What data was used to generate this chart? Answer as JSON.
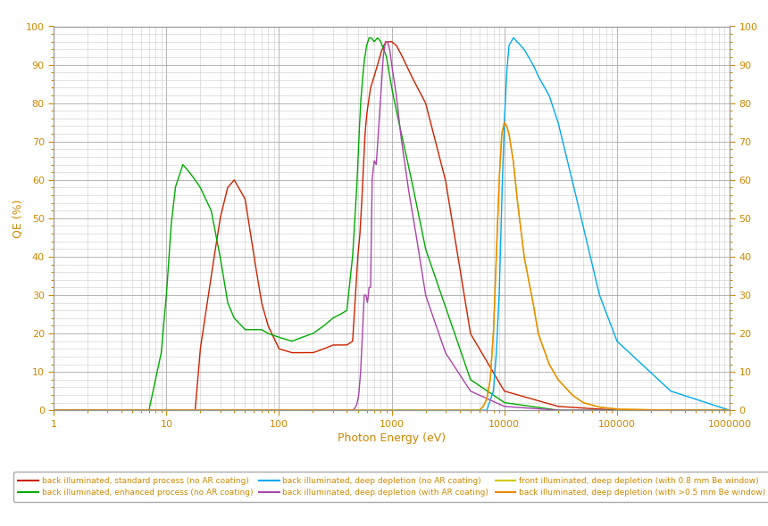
{
  "xlabel": "Photon Energy (eV)",
  "ylabel": "QE (%)",
  "xlim_low": 1,
  "xlim_high": 1000000,
  "ylim_low": 0,
  "ylim_high": 100,
  "bg_color": "#ffffff",
  "plot_bg_color": "#ffffff",
  "grid_major_color": "#aaaaaa",
  "grid_minor_color": "#cccccc",
  "tick_color": "#cc8800",
  "legend_entries": [
    "back illuminated, standard process (no AR coating)",
    "back illuminated, enhanced process (no AR coating)",
    "back illuminated, deep depletion (no AR coating)",
    "back illuminated, deep depletion (with AR coating)",
    "front illuminated, deep depletion (with 0.8 mm Be window)",
    "back illuminated, deep depletion (with >0.5 mm Be window)"
  ],
  "line_colors": [
    "#cc2200",
    "#00aa00",
    "#00aaee",
    "#aa44aa",
    "#cccc00",
    "#ee8800"
  ],
  "red_x": [
    1,
    3,
    5,
    7,
    9,
    12,
    15,
    18,
    20,
    25,
    30,
    35,
    40,
    50,
    60,
    70,
    80,
    100,
    130,
    160,
    200,
    250,
    300,
    350,
    400,
    450,
    500,
    520,
    540,
    560,
    580,
    600,
    620,
    650,
    700,
    750,
    800,
    850,
    900,
    950,
    1000,
    1100,
    1200,
    1500,
    2000,
    3000,
    5000,
    10000,
    30000,
    100000,
    1000000
  ],
  "red_y": [
    0,
    0,
    0,
    0,
    0,
    0,
    0,
    0,
    16,
    35,
    50,
    58,
    60,
    55,
    40,
    28,
    22,
    16,
    15,
    15,
    15,
    16,
    17,
    17,
    17,
    18,
    40,
    45,
    53,
    63,
    72,
    77,
    80,
    84,
    87,
    90,
    93,
    95,
    96,
    96,
    96,
    95,
    93,
    87,
    80,
    60,
    20,
    5,
    1,
    0,
    0
  ],
  "green_x": [
    1,
    3,
    5,
    7,
    9,
    10,
    11,
    12,
    14,
    16,
    18,
    20,
    25,
    30,
    35,
    40,
    50,
    60,
    70,
    80,
    100,
    130,
    160,
    200,
    250,
    300,
    350,
    400,
    450,
    490,
    510,
    530,
    550,
    570,
    600,
    630,
    660,
    700,
    750,
    800,
    850,
    900,
    950,
    1000,
    1100,
    1200,
    1500,
    2000,
    5000,
    10000,
    30000,
    100000,
    1000000
  ],
  "green_y": [
    0,
    0,
    0,
    0,
    15,
    30,
    48,
    58,
    64,
    62,
    60,
    58,
    52,
    40,
    28,
    24,
    21,
    21,
    21,
    20,
    19,
    18,
    19,
    20,
    22,
    24,
    25,
    26,
    40,
    58,
    70,
    80,
    86,
    91,
    95,
    97,
    97,
    96,
    97,
    96,
    94,
    92,
    88,
    84,
    78,
    73,
    60,
    42,
    8,
    2,
    0,
    0,
    0
  ],
  "blue_x": [
    1,
    1000,
    3000,
    5000,
    7000,
    8000,
    8500,
    9000,
    9500,
    10000,
    10500,
    11000,
    12000,
    13000,
    15000,
    18000,
    20000,
    25000,
    30000,
    40000,
    50000,
    70000,
    100000,
    300000,
    1000000
  ],
  "blue_y": [
    0,
    0,
    0,
    0,
    0,
    5,
    15,
    30,
    55,
    75,
    88,
    95,
    97,
    96,
    94,
    90,
    87,
    82,
    75,
    60,
    48,
    30,
    18,
    5,
    0
  ],
  "purple_x": [
    1,
    100,
    200,
    300,
    350,
    400,
    430,
    450,
    470,
    490,
    510,
    530,
    550,
    570,
    590,
    610,
    630,
    650,
    670,
    700,
    730,
    760,
    800,
    840,
    880,
    920,
    960,
    1000,
    1050,
    1100,
    1200,
    1400,
    1600,
    2000,
    3000,
    5000,
    10000,
    30000,
    100000,
    1000000
  ],
  "purple_y": [
    0,
    0,
    0,
    0,
    0,
    0,
    0,
    0,
    0.5,
    1.5,
    4,
    10,
    20,
    30,
    30,
    28,
    32,
    32,
    60,
    65,
    64,
    72,
    82,
    92,
    96,
    96,
    94,
    90,
    86,
    82,
    72,
    58,
    48,
    30,
    15,
    5,
    1,
    0,
    0,
    0
  ],
  "yellow_x": [
    1,
    5000,
    6000,
    6500,
    7000,
    7500,
    8000,
    8500,
    9000,
    9500,
    10000,
    10500,
    11000,
    12000,
    13000,
    15000,
    18000,
    20000,
    25000,
    30000,
    40000,
    50000,
    70000,
    100000,
    300000,
    1000000
  ],
  "yellow_y": [
    0,
    0,
    0,
    1,
    3,
    8,
    20,
    40,
    60,
    72,
    75,
    74,
    72,
    65,
    55,
    40,
    28,
    20,
    12,
    8,
    4,
    2,
    0.8,
    0.3,
    0,
    0
  ],
  "orange_x": [
    1,
    5000,
    6000,
    6500,
    7000,
    7500,
    8000,
    8500,
    9000,
    9500,
    10000,
    10500,
    11000,
    12000,
    13000,
    15000,
    18000,
    20000,
    25000,
    30000,
    40000,
    50000,
    70000,
    100000,
    300000,
    1000000
  ],
  "orange_y": [
    0,
    0,
    0,
    1,
    3,
    8,
    20,
    40,
    60,
    72,
    75,
    74,
    72,
    65,
    55,
    40,
    28,
    20,
    12,
    8,
    4,
    2,
    0.8,
    0.3,
    0,
    0
  ]
}
